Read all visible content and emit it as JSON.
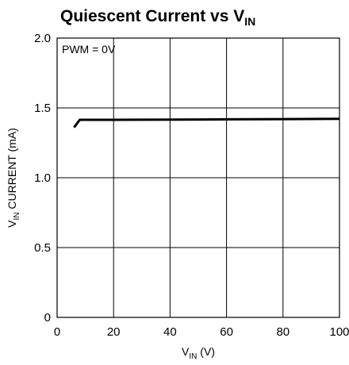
{
  "chart_data": {
    "type": "line",
    "title_main": "Quiescent Current vs V",
    "title_sub": "IN",
    "xlabel_main": "V",
    "xlabel_sub": "IN",
    "xlabel_unit": " (V)",
    "ylabel_main": "V",
    "ylabel_sub": "IN",
    "ylabel_rest": " CURRENT (mA)",
    "annotation": "PWM = 0V",
    "xlim": [
      0,
      100
    ],
    "ylim": [
      0,
      2.0
    ],
    "x_ticks": [
      "0",
      "20",
      "40",
      "60",
      "80",
      "100"
    ],
    "y_ticks": [
      "0",
      "0.5",
      "1.0",
      "1.5",
      "2.0"
    ],
    "grid": true,
    "series": [
      {
        "x": [
          6,
          8,
          20,
          40,
          60,
          80,
          100
        ],
        "y": [
          1.36,
          1.415,
          1.415,
          1.416,
          1.418,
          1.42,
          1.422
        ]
      }
    ]
  }
}
